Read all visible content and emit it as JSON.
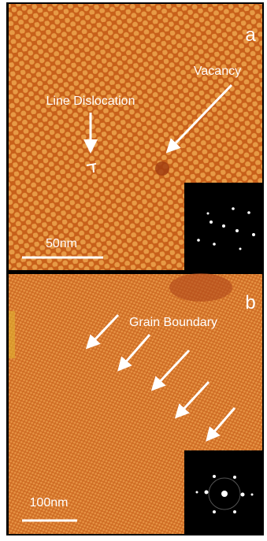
{
  "panels": [
    {
      "label": "a",
      "annotations": [
        "Vacancy",
        "Line Dislocation"
      ],
      "scale_bar": "50nm"
    },
    {
      "label": "b",
      "annotations": [
        "Grain Boundary"
      ],
      "scale_bar": "100nm"
    }
  ]
}
